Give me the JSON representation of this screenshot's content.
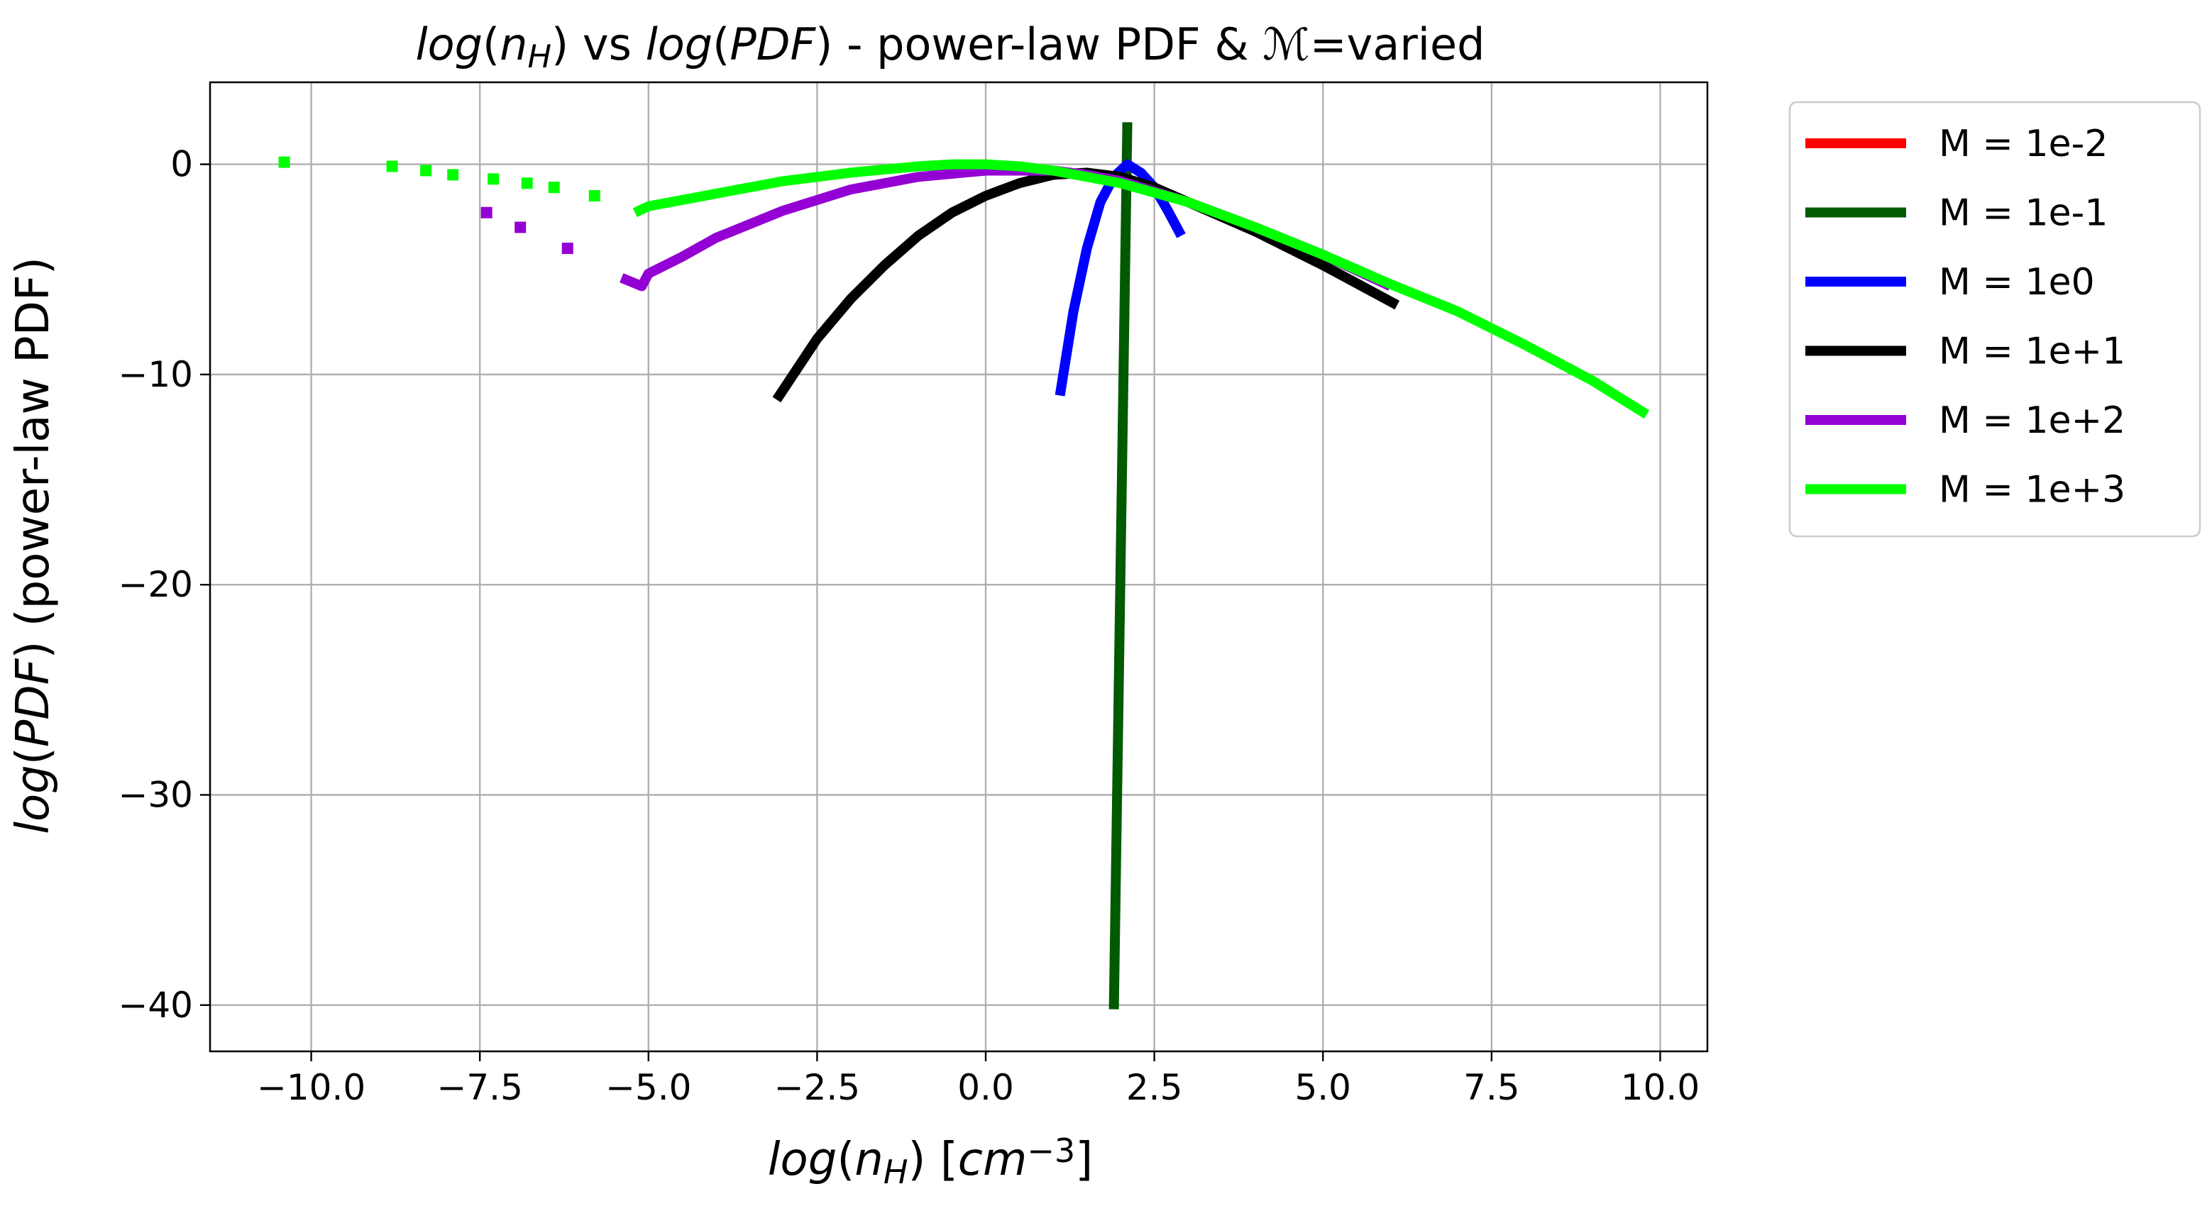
{
  "chart_data": {
    "type": "line",
    "title": {
      "parts": [
        {
          "text": "log",
          "italic": true
        },
        {
          "text": "(",
          "italic": false
        },
        {
          "text": "n",
          "italic": true
        },
        {
          "text": "H",
          "italic": true,
          "sub": true
        },
        {
          "text": ")",
          "italic": false
        },
        {
          "text": " vs ",
          "italic": false
        },
        {
          "text": "log",
          "italic": true
        },
        {
          "text": "(",
          "italic": false
        },
        {
          "text": "PDF",
          "italic": true
        },
        {
          "text": ")",
          "italic": false
        },
        {
          "text": " - power-law PDF & ",
          "italic": false
        },
        {
          "text": "ℳ",
          "italic": false
        },
        {
          "text": "=varied",
          "italic": false
        }
      ]
    },
    "xlabel": {
      "parts": [
        {
          "text": "log",
          "italic": true
        },
        {
          "text": "(",
          "italic": false
        },
        {
          "text": "n",
          "italic": true
        },
        {
          "text": "H",
          "italic": true,
          "sub": true
        },
        {
          "text": ") [",
          "italic": false
        },
        {
          "text": "cm",
          "italic": true
        },
        {
          "text": "−3",
          "italic": false,
          "sup": true
        },
        {
          "text": "]",
          "italic": false
        }
      ]
    },
    "ylabel": {
      "parts": [
        {
          "text": "log",
          "italic": true
        },
        {
          "text": "(",
          "italic": false
        },
        {
          "text": "PDF",
          "italic": true
        },
        {
          "text": ") (power-law PDF)",
          "italic": false
        }
      ]
    },
    "xlim": [
      -11.5,
      10.7
    ],
    "ylim": [
      -42.2,
      3.9
    ],
    "xticks": [
      -10.0,
      -7.5,
      -5.0,
      -2.5,
      0.0,
      2.5,
      5.0,
      7.5,
      10.0
    ],
    "xtick_labels": [
      "−10.0",
      "−7.5",
      "−5.0",
      "−2.5",
      "0.0",
      "2.5",
      "5.0",
      "7.5",
      "10.0"
    ],
    "yticks": [
      0,
      -10,
      -20,
      -30,
      -40
    ],
    "ytick_labels": [
      "0",
      "−10",
      "−20",
      "−30",
      "−40"
    ],
    "grid": true,
    "legend": {
      "placement": "outside-right-top"
    },
    "series": [
      {
        "name": "M = 1e-2",
        "color": "#ff0000",
        "points": []
      },
      {
        "name": "M = 1e-1",
        "color": "#005a00",
        "points": [
          [
            1.9,
            -40.2
          ],
          [
            2.0,
            -19.0
          ],
          [
            2.1,
            2.0
          ]
        ]
      },
      {
        "name": "M = 1e0",
        "color": "#0000ff",
        "points": [
          [
            1.1,
            -11.0
          ],
          [
            1.3,
            -7.0
          ],
          [
            1.5,
            -4.0
          ],
          [
            1.7,
            -1.8
          ],
          [
            1.9,
            -0.6
          ],
          [
            2.1,
            0.0
          ],
          [
            2.3,
            -0.4
          ],
          [
            2.5,
            -1.1
          ],
          [
            2.7,
            -2.2
          ],
          [
            2.9,
            -3.4
          ]
        ]
      },
      {
        "name": "M = 1e+1",
        "color": "#000000",
        "points": [
          [
            -3.1,
            -11.2
          ],
          [
            -2.5,
            -8.3
          ],
          [
            -2.0,
            -6.4
          ],
          [
            -1.5,
            -4.8
          ],
          [
            -1.0,
            -3.4
          ],
          [
            -0.5,
            -2.3
          ],
          [
            0.0,
            -1.5
          ],
          [
            0.5,
            -0.9
          ],
          [
            1.0,
            -0.5
          ],
          [
            1.5,
            -0.4
          ],
          [
            2.0,
            -0.6
          ],
          [
            2.5,
            -1.1
          ],
          [
            3.0,
            -1.8
          ],
          [
            4.0,
            -3.2
          ],
          [
            5.0,
            -4.8
          ],
          [
            6.1,
            -6.7
          ]
        ]
      },
      {
        "name": "M = 1e+2",
        "color": "#9400d3",
        "points": [
          [
            -5.4,
            -5.4
          ],
          [
            -5.1,
            -5.8
          ],
          [
            -5.0,
            -5.2
          ],
          [
            -4.5,
            -4.4
          ],
          [
            -4.0,
            -3.5
          ],
          [
            -3.0,
            -2.2
          ],
          [
            -2.0,
            -1.2
          ],
          [
            -1.0,
            -0.6
          ],
          [
            0.0,
            -0.3
          ],
          [
            1.0,
            -0.3
          ],
          [
            1.5,
            -0.5
          ],
          [
            2.0,
            -0.8
          ],
          [
            3.0,
            -1.8
          ],
          [
            4.0,
            -3.0
          ],
          [
            5.0,
            -4.3
          ],
          [
            6.0,
            -5.8
          ]
        ],
        "tail_points": [
          [
            -7.4,
            -2.3
          ],
          [
            -6.9,
            -3.0
          ],
          [
            -6.2,
            -4.0
          ]
        ]
      },
      {
        "name": "M = 1e+3",
        "color": "#00ff00",
        "points": [
          [
            -5.2,
            -2.3
          ],
          [
            -5.0,
            -2.0
          ],
          [
            -4.0,
            -1.4
          ],
          [
            -3.0,
            -0.8
          ],
          [
            -2.0,
            -0.4
          ],
          [
            -1.0,
            -0.1
          ],
          [
            -0.5,
            0.0
          ],
          [
            0.0,
            0.0
          ],
          [
            0.5,
            -0.1
          ],
          [
            1.0,
            -0.3
          ],
          [
            1.5,
            -0.6
          ],
          [
            2.0,
            -0.9
          ],
          [
            3.0,
            -1.8
          ],
          [
            4.0,
            -3.0
          ],
          [
            5.0,
            -4.3
          ],
          [
            6.0,
            -5.7
          ],
          [
            7.0,
            -7.0
          ],
          [
            8.0,
            -8.6
          ],
          [
            9.0,
            -10.3
          ],
          [
            9.8,
            -11.9
          ]
        ],
        "tail_points": [
          [
            -10.4,
            0.1
          ],
          [
            -8.8,
            -0.1
          ],
          [
            -8.3,
            -0.3
          ],
          [
            -7.9,
            -0.5
          ],
          [
            -7.3,
            -0.7
          ],
          [
            -6.8,
            -0.9
          ],
          [
            -6.4,
            -1.1
          ],
          [
            -5.8,
            -1.5
          ]
        ]
      }
    ]
  }
}
